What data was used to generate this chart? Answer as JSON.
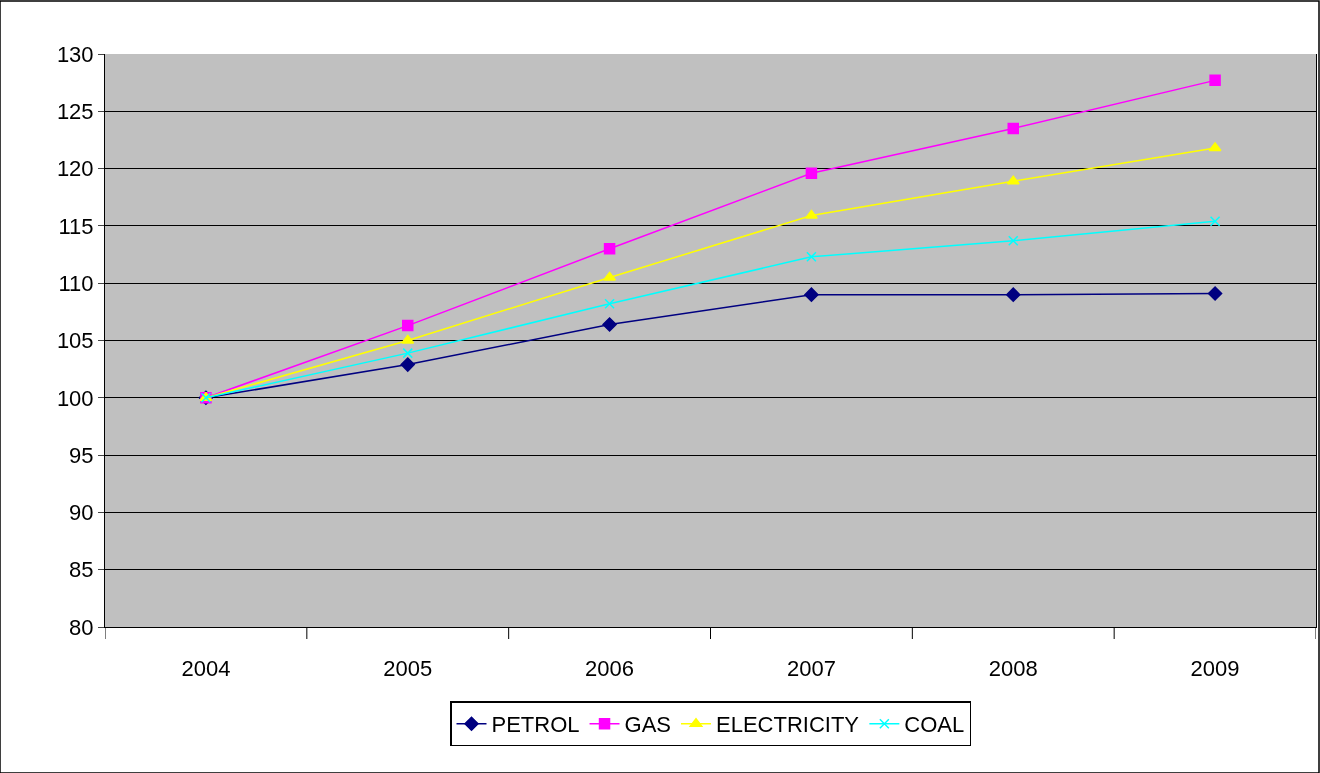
{
  "chart_data": {
    "type": "line",
    "categories": [
      "2004",
      "2005",
      "2006",
      "2007",
      "2008",
      "2009"
    ],
    "series": [
      {
        "name": "PETROL",
        "color": "#000080",
        "marker": "diamond",
        "values": [
          100,
          102.9,
          106.4,
          109.0,
          109.0,
          109.1
        ]
      },
      {
        "name": "GAS",
        "color": "#ff00ff",
        "marker": "square",
        "values": [
          100,
          106.3,
          113.0,
          119.6,
          123.5,
          127.7
        ]
      },
      {
        "name": "ELECTRICITY",
        "color": "#ffff00",
        "marker": "triangle",
        "values": [
          100,
          105.0,
          110.5,
          115.9,
          118.9,
          121.8
        ]
      },
      {
        "name": "COAL",
        "color": "#00ffff",
        "marker": "cross",
        "values": [
          100,
          103.9,
          108.2,
          112.3,
          113.7,
          115.4
        ]
      }
    ],
    "ylim": [
      80,
      130
    ],
    "yticks": [
      80,
      85,
      90,
      95,
      100,
      105,
      110,
      115,
      120,
      125,
      130
    ],
    "grid": "y",
    "legend": "bottom",
    "line_style": "solid"
  }
}
